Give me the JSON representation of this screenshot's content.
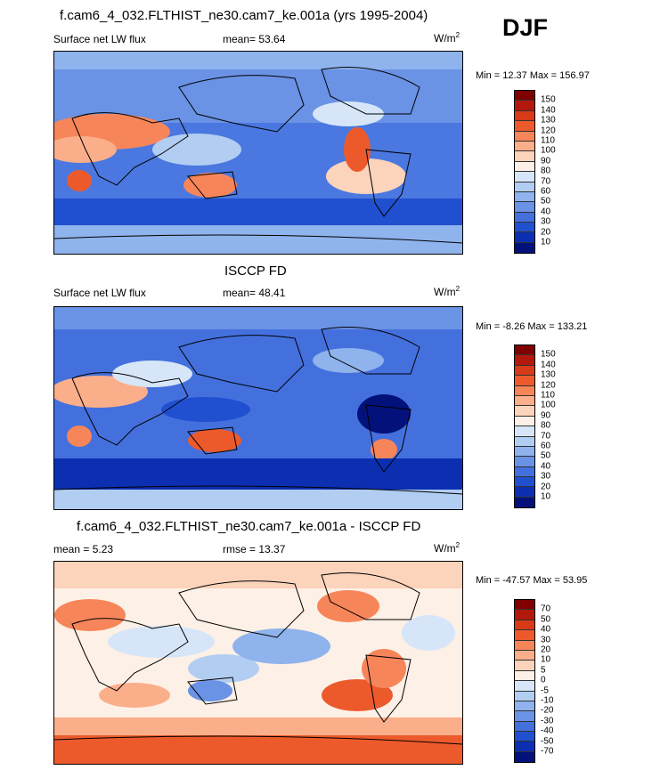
{
  "season": "DJF",
  "panels": [
    {
      "title": "f.cam6_4_032.FLTHIST_ne30.cam7_ke.001a (yrs 1995-2004)",
      "left_label": "Surface net LW flux",
      "center_label": "mean=  53.64",
      "units_base": "W/m",
      "units_exp": "2",
      "minmax": "Min =  12.37 Max = 156.97",
      "colorbar_labels": [
        "150",
        "140",
        "130",
        "120",
        "110",
        "100",
        "90",
        "80",
        "70",
        "60",
        "50",
        "40",
        "30",
        "20",
        "10"
      ]
    },
    {
      "title": "ISCCP FD",
      "left_label": "Surface net LW flux",
      "center_label": "mean=  48.41",
      "units_base": "W/m",
      "units_exp": "2",
      "minmax": "Min =  -8.26 Max = 133.21",
      "colorbar_labels": [
        "150",
        "140",
        "130",
        "120",
        "110",
        "100",
        "90",
        "80",
        "70",
        "60",
        "50",
        "40",
        "30",
        "20",
        "10"
      ]
    },
    {
      "title": "f.cam6_4_032.FLTHIST_ne30.cam7_ke.001a - ISCCP FD",
      "left_label": "mean =   5.23",
      "center_label": "rmse =  13.37",
      "units_base": "W/m",
      "units_exp": "2",
      "minmax": "Min = -47.57 Max =  53.95",
      "colorbar_labels": [
        "70",
        "50",
        "40",
        "30",
        "20",
        "10",
        "5",
        "0",
        "-5",
        "-10",
        "-20",
        "-30",
        "-40",
        "-50",
        "-70"
      ]
    }
  ],
  "colors": {
    "scale": [
      "#7f0000",
      "#b2180b",
      "#d63a16",
      "#ec5a2c",
      "#f7855a",
      "#fbae8a",
      "#fcd3bb",
      "#fdf0e6",
      "#d6e6f8",
      "#b2cdf2",
      "#8fb3ec",
      "#6a92e5",
      "#4470de",
      "#2050cf",
      "#0b2fb0",
      "#03127a"
    ],
    "land_outline": "#000000"
  }
}
